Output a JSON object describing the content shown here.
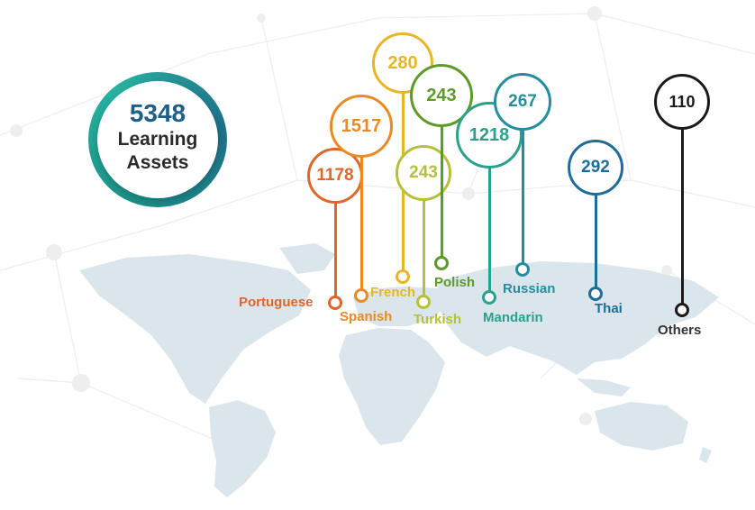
{
  "total": {
    "value": "5348",
    "label_line1": "Learning",
    "label_line2": "Assets"
  },
  "colors": {
    "portuguese": "#e0662a",
    "spanish": "#ea8a24",
    "french": "#e8b624",
    "turkish": "#b6c13a",
    "polish": "#5e9a27",
    "mandarin": "#2aa08e",
    "russian": "#238e9d",
    "thai": "#1d6d98",
    "others": "#1a1a1a"
  },
  "languages": [
    {
      "name": "Portuguese",
      "count": "1178",
      "color_key": "portuguese",
      "icon": "location-pin-icon"
    },
    {
      "name": "Spanish",
      "count": "1517",
      "color_key": "spanish",
      "icon": "location-pin-icon"
    },
    {
      "name": "French",
      "count": "280",
      "color_key": "french",
      "icon": "location-pin-icon"
    },
    {
      "name": "Turkish",
      "count": "243",
      "color_key": "turkish",
      "icon": "location-pin-icon"
    },
    {
      "name": "Polish",
      "count": "243",
      "color_key": "polish",
      "icon": "location-pin-icon"
    },
    {
      "name": "Mandarin",
      "count": "1218",
      "color_key": "mandarin",
      "icon": "location-pin-icon"
    },
    {
      "name": "Russian",
      "count": "267",
      "color_key": "russian",
      "icon": "location-pin-icon"
    },
    {
      "name": "Thai",
      "count": "292",
      "color_key": "thai",
      "icon": "location-pin-icon"
    },
    {
      "name": "Others",
      "count": "110",
      "color_key": "others",
      "icon": "location-pin-icon"
    }
  ]
}
